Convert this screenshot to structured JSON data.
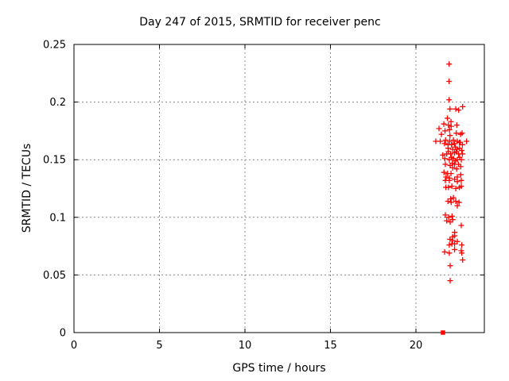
{
  "page": {
    "background": "#ffffff"
  },
  "chart_data": {
    "type": "scatter",
    "title": "Day 247 of 2015, SRMTID for receiver penc",
    "xlabel": "GPS time / hours",
    "ylabel": "SRMTID / TECUs",
    "xlim": [
      0,
      24
    ],
    "ylim": [
      0,
      0.25
    ],
    "xticks": [
      0,
      5,
      10,
      15,
      20
    ],
    "xtick_labels": [
      "0",
      "5",
      "10",
      "15",
      "20"
    ],
    "yticks": [
      0,
      0.05,
      0.1,
      0.15,
      0.2,
      0.25
    ],
    "ytick_labels": [
      "0",
      "0.05",
      "0.1",
      "0.15",
      "0.2",
      "0.25"
    ],
    "grid": true,
    "legend": "none",
    "colors": {
      "marker": "#ff0000",
      "grid": "#888888",
      "frame": "#000000",
      "text": "#000000",
      "background": "#ffffff"
    },
    "series": [
      {
        "name": "srmtid-values",
        "marker": "plus",
        "color": "#ff0000",
        "points": [
          [
            21.94,
            0.233
          ],
          [
            21.94,
            0.218
          ],
          [
            21.94,
            0.202
          ],
          [
            21.99,
            0.194
          ],
          [
            22.33,
            0.194
          ],
          [
            22.5,
            0.193
          ],
          [
            22.73,
            0.196
          ],
          [
            21.84,
            0.186
          ],
          [
            22.05,
            0.183
          ],
          [
            21.63,
            0.181
          ],
          [
            21.9,
            0.18
          ],
          [
            22.06,
            0.179
          ],
          [
            22.39,
            0.18
          ],
          [
            21.35,
            0.177
          ],
          [
            21.7,
            0.175
          ],
          [
            21.96,
            0.176
          ],
          [
            21.49,
            0.172
          ],
          [
            21.99,
            0.171
          ],
          [
            22.36,
            0.173
          ],
          [
            22.61,
            0.172
          ],
          [
            22.7,
            0.173
          ],
          [
            21.16,
            0.166
          ],
          [
            21.42,
            0.166
          ],
          [
            21.73,
            0.167
          ],
          [
            21.97,
            0.166
          ],
          [
            22.19,
            0.167
          ],
          [
            22.42,
            0.166
          ],
          [
            22.59,
            0.165
          ],
          [
            22.96,
            0.166
          ],
          [
            21.67,
            0.164
          ],
          [
            21.88,
            0.163
          ],
          [
            22.08,
            0.163
          ],
          [
            22.26,
            0.164
          ],
          [
            22.54,
            0.165
          ],
          [
            22.72,
            0.163
          ],
          [
            21.88,
            0.16
          ],
          [
            22.15,
            0.159
          ],
          [
            22.4,
            0.159
          ],
          [
            22.68,
            0.158
          ],
          [
            22.3,
            0.161
          ],
          [
            22.55,
            0.16
          ],
          [
            21.57,
            0.154
          ],
          [
            21.8,
            0.155
          ],
          [
            22.03,
            0.155
          ],
          [
            22.26,
            0.156
          ],
          [
            22.49,
            0.155
          ],
          [
            22.72,
            0.155
          ],
          [
            21.9,
            0.157
          ],
          [
            22.36,
            0.157
          ],
          [
            21.69,
            0.151
          ],
          [
            21.95,
            0.15
          ],
          [
            22.19,
            0.151
          ],
          [
            22.42,
            0.15
          ],
          [
            22.65,
            0.15
          ],
          [
            22.08,
            0.152
          ],
          [
            22.3,
            0.149
          ],
          [
            22.55,
            0.152
          ],
          [
            21.72,
            0.146
          ],
          [
            22.0,
            0.145
          ],
          [
            22.26,
            0.146
          ],
          [
            22.49,
            0.146
          ],
          [
            22.13,
            0.147
          ],
          [
            22.15,
            0.143
          ],
          [
            22.38,
            0.142
          ],
          [
            22.62,
            0.144
          ],
          [
            21.64,
            0.139
          ],
          [
            21.85,
            0.138
          ],
          [
            22.05,
            0.138
          ],
          [
            21.76,
            0.135
          ],
          [
            21.96,
            0.134
          ],
          [
            22.42,
            0.135
          ],
          [
            22.62,
            0.137
          ],
          [
            21.72,
            0.132
          ],
          [
            21.95,
            0.132
          ],
          [
            22.26,
            0.133
          ],
          [
            22.42,
            0.131
          ],
          [
            22.65,
            0.132
          ],
          [
            21.75,
            0.126
          ],
          [
            21.9,
            0.126
          ],
          [
            22.1,
            0.127
          ],
          [
            22.33,
            0.125
          ],
          [
            22.54,
            0.126
          ],
          [
            22.65,
            0.127
          ],
          [
            22.03,
            0.116
          ],
          [
            22.19,
            0.117
          ],
          [
            21.87,
            0.114
          ],
          [
            22.06,
            0.113
          ],
          [
            22.33,
            0.114
          ],
          [
            22.52,
            0.113
          ],
          [
            22.42,
            0.11
          ],
          [
            21.72,
            0.102
          ],
          [
            21.91,
            0.1
          ],
          [
            22.11,
            0.101
          ],
          [
            21.8,
            0.097
          ],
          [
            22.0,
            0.096
          ],
          [
            22.15,
            0.098
          ],
          [
            22.65,
            0.093
          ],
          [
            22.26,
            0.087
          ],
          [
            22.15,
            0.083
          ],
          [
            22.26,
            0.084
          ],
          [
            21.99,
            0.081
          ],
          [
            22.15,
            0.08
          ],
          [
            21.95,
            0.076
          ],
          [
            22.1,
            0.077
          ],
          [
            22.26,
            0.077
          ],
          [
            22.42,
            0.079
          ],
          [
            22.68,
            0.076
          ],
          [
            21.68,
            0.07
          ],
          [
            21.95,
            0.069
          ],
          [
            22.26,
            0.072
          ],
          [
            22.65,
            0.071
          ],
          [
            22.68,
            0.069
          ],
          [
            22.73,
            0.063
          ],
          [
            22.0,
            0.058
          ],
          [
            22.0,
            0.045
          ]
        ]
      },
      {
        "name": "zero-baseline-point",
        "marker": "filled-square",
        "color": "#ff0000",
        "points": [
          [
            21.58,
            0.0
          ]
        ]
      }
    ]
  }
}
